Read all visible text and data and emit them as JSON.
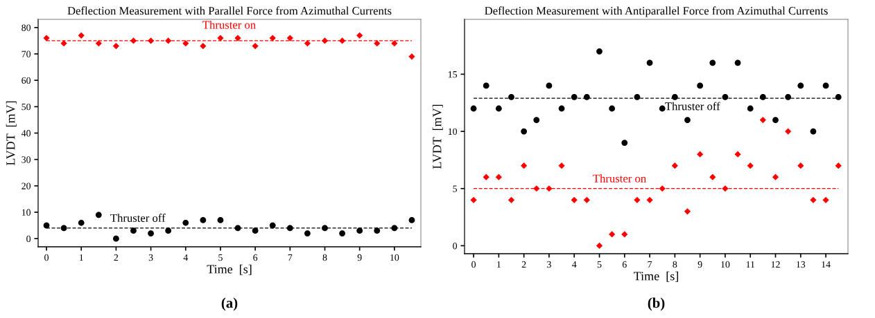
{
  "chart_data": [
    {
      "type": "scatter",
      "title": "Deflection Measurement with Parallel Force from Azimuthal Currents",
      "xlabel": "Time  [s]",
      "ylabel": "LVDT  [mV]",
      "annotations": [
        "(a)"
      ],
      "x": [
        0,
        0.5,
        1,
        1.5,
        2,
        2.5,
        3,
        3.5,
        4,
        4.5,
        5,
        5.5,
        6,
        6.5,
        7,
        7.5,
        8,
        8.5,
        9,
        9.5,
        10,
        10.5
      ],
      "series": [
        {
          "color": "#ff0000",
          "marker": "diamond",
          "values": [
            76,
            74,
            77,
            74,
            73,
            75,
            75,
            75,
            74,
            73,
            76,
            76,
            73,
            76,
            76,
            74,
            75,
            75,
            77,
            74,
            74,
            69
          ]
        },
        {
          "color": "#000000",
          "marker": "circle",
          "values": [
            5,
            4,
            6,
            9,
            0,
            3,
            2,
            3,
            6,
            7,
            7,
            4,
            3,
            5,
            4,
            2,
            4,
            2,
            3,
            3,
            4,
            7
          ]
        }
      ],
      "ref_lines": [
        {
          "axis": "y",
          "value": 75,
          "label": "Thruster on",
          "color": "#ff0000",
          "line_style": "dashed"
        },
        {
          "axis": "y",
          "value": 4,
          "label": "Thruster off",
          "color": "#000000",
          "line_style": "dashed"
        }
      ],
      "xlim": [
        -0.24,
        10.76
      ],
      "xticks": [
        0,
        1,
        2,
        3,
        4,
        5,
        6,
        7,
        8,
        9,
        10
      ],
      "ylim": [
        -3.1,
        83.1
      ],
      "yticks": [
        0,
        10,
        20,
        30,
        40,
        50,
        60,
        70,
        80
      ],
      "grid": false,
      "legend": false
    },
    {
      "type": "scatter",
      "title": "Deflection Measurement with Antiparallel Force from Azimuthal Currents",
      "xlabel": "Time  [s]",
      "ylabel": "LVDT  [mV]",
      "annotations": [
        "(b)"
      ],
      "x": [
        0,
        0.5,
        1,
        1.5,
        2,
        2.5,
        3,
        3.5,
        4,
        4.5,
        5,
        5.5,
        6,
        6.5,
        7,
        7.5,
        8,
        8.5,
        9,
        9.5,
        10,
        10.5,
        11,
        11.5,
        12,
        12.5,
        13,
        13.5,
        14,
        14.5
      ],
      "series": [
        {
          "color": "#000000",
          "marker": "circle",
          "values": [
            12,
            14,
            12,
            13,
            10,
            11,
            14,
            12,
            13,
            13,
            17,
            12,
            9,
            13,
            16,
            12,
            13,
            11,
            14,
            16,
            13,
            16,
            12,
            13,
            11,
            13,
            14,
            10,
            14,
            13
          ]
        },
        {
          "color": "#ff0000",
          "marker": "diamond",
          "values": [
            4,
            6,
            6,
            4,
            7,
            5,
            5,
            7,
            4,
            4,
            0,
            1,
            1,
            4,
            4,
            5,
            7,
            3,
            8,
            6,
            5,
            8,
            7,
            11,
            6,
            10,
            7,
            4,
            4,
            7
          ]
        }
      ],
      "ref_lines": [
        {
          "axis": "y",
          "value": 12.9,
          "label": "Thruster off",
          "color": "#000000",
          "line_style": "dashed"
        },
        {
          "axis": "y",
          "value": 5,
          "label": "Thruster on",
          "color": "#ff0000",
          "line_style": "dashed"
        }
      ],
      "xlim": [
        -0.36,
        14.88
      ],
      "xticks": [
        0,
        1,
        2,
        3,
        4,
        5,
        6,
        7,
        8,
        9,
        10,
        11,
        12,
        13,
        14
      ],
      "ylim": [
        -0.7,
        19.8
      ],
      "yticks": [
        0,
        5,
        10,
        15
      ],
      "grid": false,
      "legend": false
    }
  ]
}
